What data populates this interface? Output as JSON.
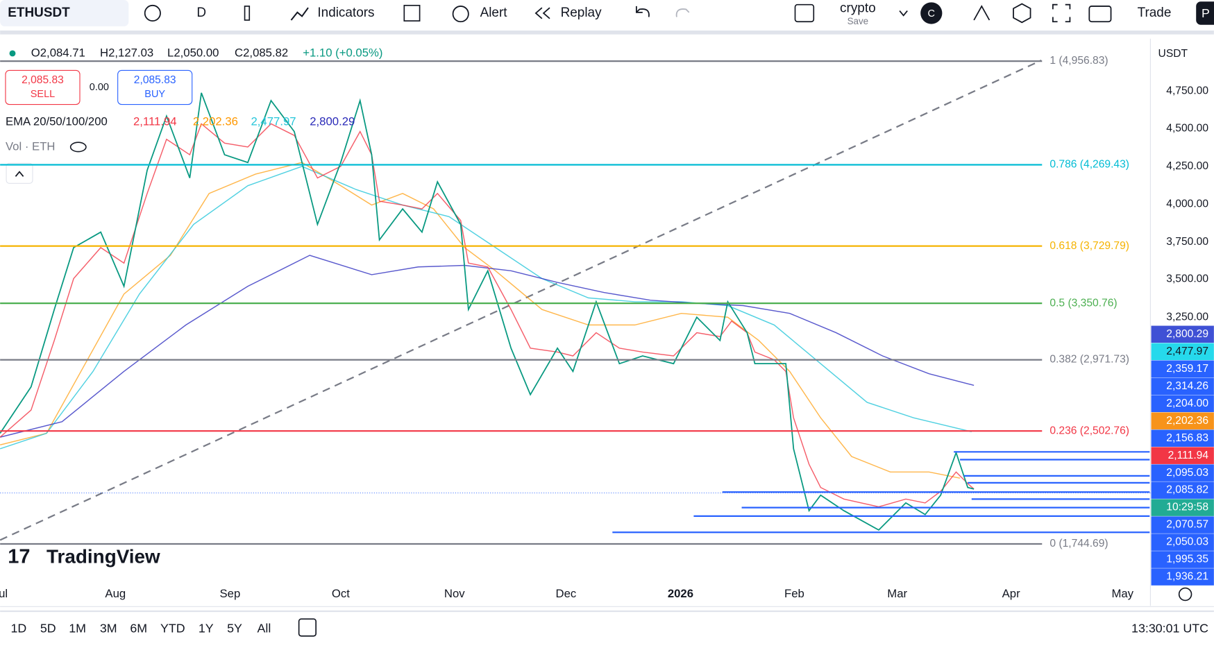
{
  "toolbar": {
    "symbol": "ETHUSDT",
    "interval": "D",
    "indicators": "Indicators",
    "alert": "Alert",
    "replay": "Replay",
    "layout": "crypto",
    "save": "Save",
    "avatar": "C",
    "trade": "Trade",
    "profile": "P"
  },
  "legend": {
    "open": "O2,084.71",
    "high": "H2,127.03",
    "low": "L2,050.00",
    "close": "C2,085.82",
    "change": "+1.10 (+0.05%)",
    "sell_price": "2,085.83",
    "sell": "SELL",
    "spread": "0.00",
    "buy_price": "2,085.83",
    "buy": "BUY",
    "ema_name": "EMA 20/50/100/200",
    "ema_values": [
      {
        "label": "2,111.94",
        "color": "#f23645"
      },
      {
        "label": "2,202.36",
        "color": "#ff9800"
      },
      {
        "label": "2,477.97",
        "color": "#26c6da"
      },
      {
        "label": "2,800.29",
        "color": "#2a2ab8"
      }
    ],
    "volume": "Vol · ETH"
  },
  "fib_levels": [
    {
      "label": "1 (4,956.83)",
      "color": "#787b86"
    },
    {
      "label": "0.786 (4,269.43)",
      "color": "#00bcd4"
    },
    {
      "label": "0.618 (3,729.79)",
      "color": "#f5b300"
    },
    {
      "label": "0.5 (3,350.76)",
      "color": "#4caf50"
    },
    {
      "label": "0.382 (2,971.73)",
      "color": "#787b86"
    },
    {
      "label": "0.236 (2,502.76)",
      "color": "#f23645"
    },
    {
      "label": "0 (1,744.69)",
      "color": "#787b86"
    }
  ],
  "currency": "USDT",
  "price_axis": [
    "4,750.00",
    "4,500.00",
    "4,250.00",
    "4,000.00",
    "3,750.00",
    "3,500.00",
    "3,250.00"
  ],
  "price_tags": [
    {
      "label": "2,800.29",
      "color": "#3f51d5"
    },
    {
      "label": "2,477.97",
      "color": "#26d9ec"
    },
    {
      "label": "2,359.17",
      "color": "#2962ff"
    },
    {
      "label": "2,314.26",
      "color": "#2962ff"
    },
    {
      "label": "2,204.00",
      "color": "#2962ff"
    },
    {
      "label": "2,202.36",
      "color": "#f7931a"
    },
    {
      "label": "2,156.83",
      "color": "#2962ff"
    },
    {
      "label": "2,111.94",
      "color": "#f23645"
    },
    {
      "label": "2,095.03",
      "color": "#2962ff"
    },
    {
      "label": "2,085.82",
      "color": "#2962ff"
    },
    {
      "label": "10:29:58",
      "color": "#22ab94"
    },
    {
      "label": "2,070.57",
      "color": "#2962ff"
    },
    {
      "label": "2,050.03",
      "color": "#2962ff"
    },
    {
      "label": "1,995.35",
      "color": "#2962ff"
    },
    {
      "label": "1,936.21",
      "color": "#2962ff"
    }
  ],
  "time_axis": [
    "ul",
    "Aug",
    "Sep",
    "Oct",
    "Nov",
    "Dec",
    "2026",
    "Feb",
    "Mar",
    "Apr",
    "May"
  ],
  "logo": "TradingView",
  "ranges": [
    "1D",
    "5D",
    "1M",
    "3M",
    "6M",
    "YTD",
    "1Y",
    "5Y",
    "All"
  ],
  "clock": "13:30:01 UTC"
}
